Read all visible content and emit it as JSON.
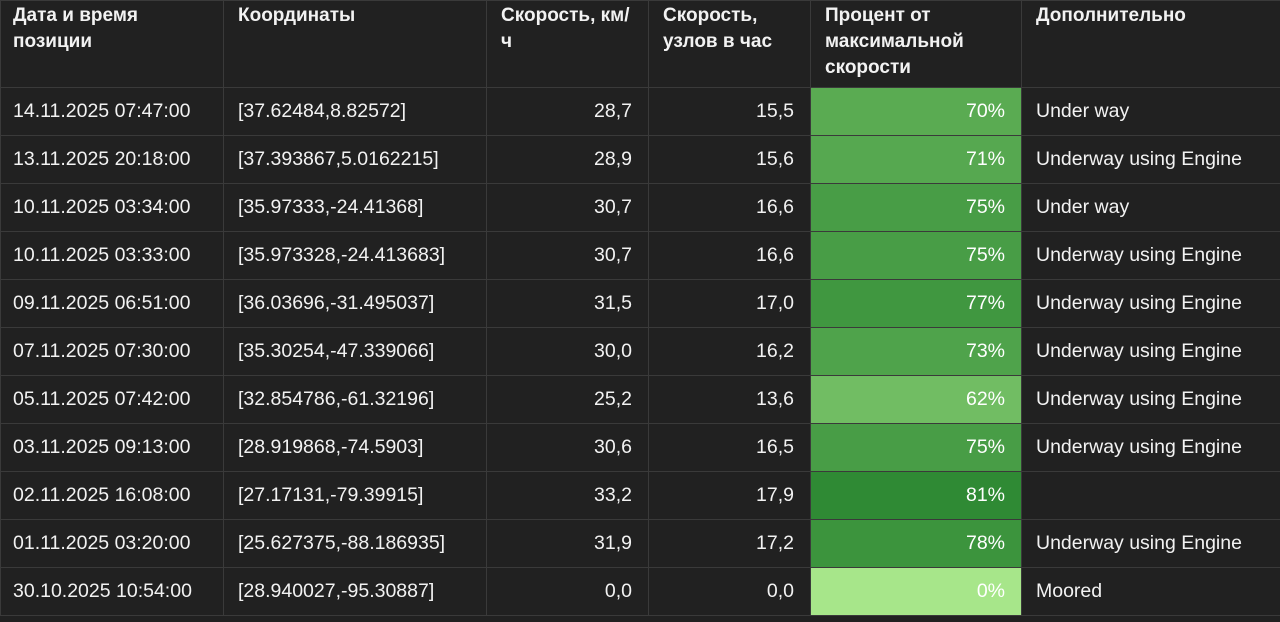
{
  "table": {
    "headers": [
      "Дата и время позиции",
      "Координаты",
      "Скорость, км/ч",
      "Скорость, узлов в час",
      "Процент от максимальной скорости",
      "Дополнительно"
    ],
    "rows": [
      {
        "datetime": "14.11.2025 07:47:00",
        "coords": "[37.62484,8.82572]",
        "kmh": "28,7",
        "knots": "15,5",
        "pct": "70%",
        "pct_value": 70,
        "extra": "Under way"
      },
      {
        "datetime": "13.11.2025 20:18:00",
        "coords": "[37.393867,5.0162215]",
        "kmh": "28,9",
        "knots": "15,6",
        "pct": "71%",
        "pct_value": 71,
        "extra": "Underway using Engine"
      },
      {
        "datetime": "10.11.2025 03:34:00",
        "coords": "[35.97333,-24.41368]",
        "kmh": "30,7",
        "knots": "16,6",
        "pct": "75%",
        "pct_value": 75,
        "extra": "Under way"
      },
      {
        "datetime": "10.11.2025 03:33:00",
        "coords": "[35.973328,-24.413683]",
        "kmh": "30,7",
        "knots": "16,6",
        "pct": "75%",
        "pct_value": 75,
        "extra": "Underway using Engine"
      },
      {
        "datetime": "09.11.2025 06:51:00",
        "coords": "[36.03696,-31.495037]",
        "kmh": "31,5",
        "knots": "17,0",
        "pct": "77%",
        "pct_value": 77,
        "extra": "Underway using Engine"
      },
      {
        "datetime": "07.11.2025 07:30:00",
        "coords": "[35.30254,-47.339066]",
        "kmh": "30,0",
        "knots": "16,2",
        "pct": "73%",
        "pct_value": 73,
        "extra": "Underway using Engine"
      },
      {
        "datetime": "05.11.2025 07:42:00",
        "coords": "[32.854786,-61.32196]",
        "kmh": "25,2",
        "knots": "13,6",
        "pct": "62%",
        "pct_value": 62,
        "extra": "Underway using Engine"
      },
      {
        "datetime": "03.11.2025 09:13:00",
        "coords": "[28.919868,-74.5903]",
        "kmh": "30,6",
        "knots": "16,5",
        "pct": "75%",
        "pct_value": 75,
        "extra": "Underway using Engine"
      },
      {
        "datetime": "02.11.2025 16:08:00",
        "coords": "[27.17131,-79.39915]",
        "kmh": "33,2",
        "knots": "17,9",
        "pct": "81%",
        "pct_value": 81,
        "extra": ""
      },
      {
        "datetime": "01.11.2025 03:20:00",
        "coords": "[25.627375,-88.186935]",
        "kmh": "31,9",
        "knots": "17,2",
        "pct": "78%",
        "pct_value": 78,
        "extra": "Underway using Engine"
      },
      {
        "datetime": "30.10.2025 10:54:00",
        "coords": "[28.940027,-95.30887]",
        "kmh": "0,0",
        "knots": "0,0",
        "pct": "0%",
        "pct_value": 0,
        "extra": "Moored"
      }
    ]
  },
  "colors": {
    "background": "#212121",
    "grid": "#3a3a3a",
    "pct_high": "#2f8a34",
    "pct_low": "#a7e68a"
  }
}
